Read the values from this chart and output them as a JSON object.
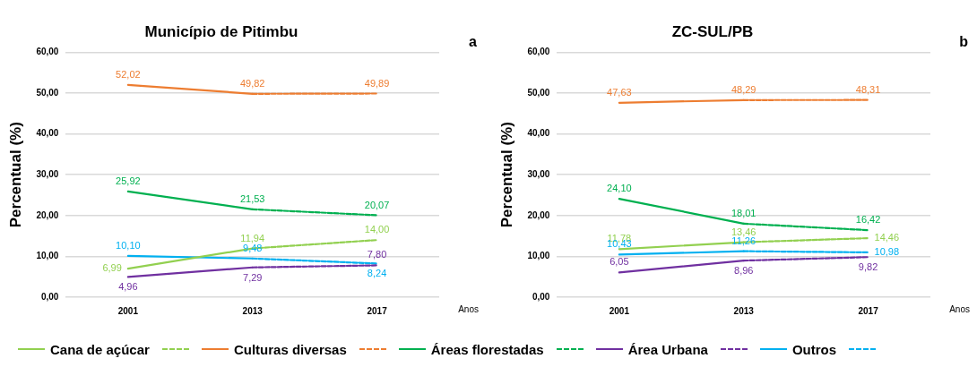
{
  "chart_data": [
    {
      "type": "line",
      "title": "Município de Pitimbu",
      "xlabel": "Anos",
      "ylabel": "Percentual (%)",
      "annotations": [
        "a"
      ],
      "categories": [
        "2001",
        "2013",
        "2017"
      ],
      "ylim": [
        0,
        60
      ],
      "yticks": [
        {
          "value": 0,
          "label": "0,00"
        },
        {
          "value": 10,
          "label": "10,00"
        },
        {
          "value": 20,
          "label": "20,00"
        },
        {
          "value": 30,
          "label": "30,00"
        },
        {
          "value": 40,
          "label": "40,00"
        },
        {
          "value": 50,
          "label": "50,00"
        },
        {
          "value": 60,
          "label": "60,00"
        }
      ],
      "grid": "y",
      "legend": "bottom",
      "marker": "none",
      "series": [
        {
          "name": "Cana de açúcar",
          "color": "#92d050",
          "line_style": "solid",
          "values": [
            6.99,
            11.94,
            null
          ],
          "value_labels": [
            "6,99",
            "11,94",
            null
          ]
        },
        {
          "color": "#92d050",
          "line_style": "dashed",
          "values": [
            null,
            11.94,
            14.0
          ],
          "value_labels": [
            null,
            null,
            "14,00"
          ]
        },
        {
          "name": "Culturas diversas",
          "color": "#ed7d31",
          "line_style": "solid",
          "values": [
            52.02,
            49.82,
            null
          ],
          "value_labels": [
            "52,02",
            "49,82",
            null
          ]
        },
        {
          "color": "#ed7d31",
          "line_style": "dashed",
          "values": [
            null,
            49.82,
            49.89
          ],
          "value_labels": [
            null,
            null,
            "49,89"
          ]
        },
        {
          "name": "Áreas florestadas",
          "color": "#00b050",
          "line_style": "solid",
          "values": [
            25.92,
            21.53,
            null
          ],
          "value_labels": [
            "25,92",
            "21,53",
            null
          ]
        },
        {
          "color": "#00b050",
          "line_style": "dashed",
          "values": [
            null,
            21.53,
            20.07
          ],
          "value_labels": [
            null,
            null,
            "20,07"
          ]
        },
        {
          "name": "Área Urbana",
          "color": "#7030a0",
          "line_style": "solid",
          "values": [
            4.96,
            7.29,
            null
          ],
          "value_labels": [
            "4,96",
            "7,29",
            null
          ]
        },
        {
          "color": "#7030a0",
          "line_style": "dashed",
          "values": [
            null,
            7.29,
            7.8
          ],
          "value_labels": [
            null,
            null,
            "7,80"
          ]
        },
        {
          "name": "Outros",
          "color": "#00b0f0",
          "line_style": "solid",
          "values": [
            10.1,
            9.48,
            null
          ],
          "value_labels": [
            "10,10",
            "9,48",
            null
          ]
        },
        {
          "color": "#00b0f0",
          "line_style": "dashed",
          "values": [
            null,
            9.48,
            8.24
          ],
          "value_labels": [
            null,
            null,
            "8,24"
          ]
        }
      ]
    },
    {
      "type": "line",
      "title": "ZC-SUL/PB",
      "xlabel": "Anos",
      "ylabel": "Percentual (%)",
      "annotations": [
        "b"
      ],
      "categories": [
        "2001",
        "2013",
        "2017"
      ],
      "ylim": [
        0,
        60
      ],
      "yticks": [
        {
          "value": 0,
          "label": "0,00"
        },
        {
          "value": 10,
          "label": "10,00"
        },
        {
          "value": 20,
          "label": "20,00"
        },
        {
          "value": 30,
          "label": "30,00"
        },
        {
          "value": 40,
          "label": "40,00"
        },
        {
          "value": 50,
          "label": "50,00"
        },
        {
          "value": 60,
          "label": "60,00"
        }
      ],
      "grid": "y",
      "marker": "none",
      "series": [
        {
          "name": "Cana de açúcar",
          "color": "#92d050",
          "line_style": "solid",
          "values": [
            11.78,
            13.46,
            null
          ],
          "value_labels": [
            "11,78",
            "13,46",
            null
          ]
        },
        {
          "color": "#92d050",
          "line_style": "dashed",
          "values": [
            null,
            13.46,
            14.46
          ],
          "value_labels": [
            null,
            null,
            "14,46"
          ]
        },
        {
          "name": "Culturas diversas",
          "color": "#ed7d31",
          "line_style": "solid",
          "values": [
            47.63,
            48.29,
            null
          ],
          "value_labels": [
            "47,63",
            "48,29",
            null
          ]
        },
        {
          "color": "#ed7d31",
          "line_style": "dashed",
          "values": [
            null,
            48.29,
            48.31
          ],
          "value_labels": [
            null,
            null,
            "48,31"
          ]
        },
        {
          "name": "Áreas florestadas",
          "color": "#00b050",
          "line_style": "solid",
          "values": [
            24.1,
            18.01,
            null
          ],
          "value_labels": [
            "24,10",
            "18,01",
            null
          ]
        },
        {
          "color": "#00b050",
          "line_style": "dashed",
          "values": [
            null,
            18.01,
            16.42
          ],
          "value_labels": [
            null,
            null,
            "16,42"
          ]
        },
        {
          "name": "Área Urbana",
          "color": "#7030a0",
          "line_style": "solid",
          "values": [
            6.05,
            8.96,
            null
          ],
          "value_labels": [
            "6,05",
            "8,96",
            null
          ]
        },
        {
          "color": "#7030a0",
          "line_style": "dashed",
          "values": [
            null,
            8.96,
            9.82
          ],
          "value_labels": [
            null,
            null,
            "9,82"
          ]
        },
        {
          "name": "Outros",
          "color": "#00b0f0",
          "line_style": "solid",
          "values": [
            10.43,
            11.26,
            null
          ],
          "value_labels": [
            "10,43",
            "11,26",
            null
          ]
        },
        {
          "color": "#00b0f0",
          "line_style": "dashed",
          "values": [
            null,
            11.26,
            10.98
          ],
          "value_labels": [
            null,
            null,
            "10,98"
          ]
        }
      ]
    }
  ]
}
